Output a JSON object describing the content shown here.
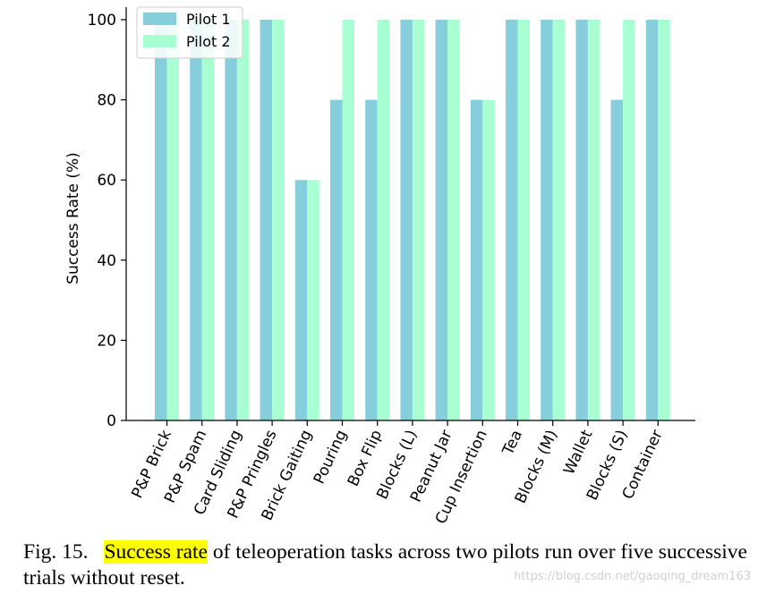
{
  "chart_data": {
    "type": "bar",
    "title": "",
    "xlabel": "",
    "ylabel": "Success Rate (%)",
    "ylim": [
      0,
      100
    ],
    "yticks": [
      0,
      20,
      40,
      60,
      80,
      100
    ],
    "categories": [
      "P&P Brick",
      "P&P Spam",
      "Card Sliding",
      "P&P Pringles",
      "Brick Gaiting",
      "Pouring",
      "Box Flip",
      "Blocks (L)",
      "Peanut Jar",
      "Cup Insertion",
      "Tea",
      "Blocks (M)",
      "Wallet",
      "Blocks (S)",
      "Container"
    ],
    "series": [
      {
        "name": "Pilot 1",
        "color": "#87CEDD",
        "values": [
          100,
          100,
          100,
          100,
          60,
          80,
          80,
          100,
          100,
          80,
          100,
          100,
          100,
          80,
          100
        ]
      },
      {
        "name": "Pilot 2",
        "color": "#A8FFD2",
        "values": [
          100,
          100,
          100,
          100,
          60,
          100,
          100,
          100,
          100,
          80,
          100,
          100,
          100,
          100,
          100
        ]
      }
    ],
    "legend_position": "top-left",
    "grid": false
  },
  "caption": {
    "label": "Fig. 15.",
    "highlight": "Success rate",
    "text": " of teleoperation tasks across two pilots run over five successive trials without reset."
  },
  "watermark": "https://blog.csdn.net/gaoqing_dream163"
}
